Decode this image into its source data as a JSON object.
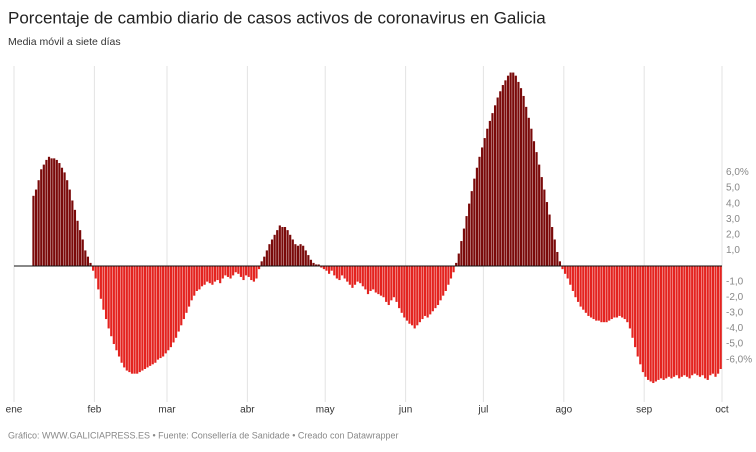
{
  "chart_data": {
    "type": "bar",
    "title": "Porcentaje de cambio diario de casos activos de coronavirus en Galicia",
    "subtitle": "Media móvil a siete días",
    "footer": "Gráfico: WWW.GALICIAPRESS.ES • Fuente: Consellería de Sanidade • Creado con Datawrapper",
    "positive_color": "#7a0a0a",
    "negative_color": "#e4231f",
    "xlim": [
      0,
      273
    ],
    "xticks": [
      {
        "value": 0,
        "label": "ene"
      },
      {
        "value": 31,
        "label": "feb"
      },
      {
        "value": 59,
        "label": "mar"
      },
      {
        "value": 90,
        "label": "abr"
      },
      {
        "value": 120,
        "label": "may"
      },
      {
        "value": 151,
        "label": "jun"
      },
      {
        "value": 181,
        "label": "jul"
      },
      {
        "value": 212,
        "label": "ago"
      },
      {
        "value": 243,
        "label": "sep"
      },
      {
        "value": 273,
        "label": "oct"
      }
    ],
    "ylim": [
      -7.69,
      12.82
    ],
    "yticks": [
      {
        "value": 6,
        "label": "6,0%"
      },
      {
        "value": 5,
        "label": "5,0"
      },
      {
        "value": 4,
        "label": "4,0"
      },
      {
        "value": 3,
        "label": "3,0"
      },
      {
        "value": 2,
        "label": "2,0"
      },
      {
        "value": 1,
        "label": "1,0"
      },
      {
        "value": -1,
        "label": "-1,0"
      },
      {
        "value": -2,
        "label": "-2,0"
      },
      {
        "value": -3,
        "label": "-3,0"
      },
      {
        "value": -4,
        "label": "-4,0"
      },
      {
        "value": -5,
        "label": "-5,0"
      },
      {
        "value": -6,
        "label": "-6,0%"
      }
    ],
    "x_grid": true,
    "values": [
      null,
      null,
      null,
      null,
      null,
      null,
      null,
      4.5,
      4.9,
      5.5,
      6.2,
      6.5,
      6.8,
      7.0,
      6.9,
      6.9,
      6.8,
      6.6,
      6.3,
      6.0,
      5.5,
      4.9,
      4.2,
      3.6,
      2.9,
      2.3,
      1.7,
      1.0,
      0.6,
      0.2,
      -0.3,
      -0.8,
      -1.5,
      -2.1,
      -2.8,
      -3.4,
      -4.0,
      -4.5,
      -5.0,
      -5.4,
      -5.8,
      -6.2,
      -6.5,
      -6.7,
      -6.8,
      -6.9,
      -6.9,
      -6.9,
      -6.8,
      -6.7,
      -6.6,
      -6.5,
      -6.4,
      -6.3,
      -6.2,
      -6.0,
      -5.9,
      -5.8,
      -5.6,
      -5.4,
      -5.2,
      -4.9,
      -4.6,
      -4.2,
      -3.8,
      -3.4,
      -3.0,
      -2.6,
      -2.2,
      -1.9,
      -1.6,
      -1.5,
      -1.3,
      -1.2,
      -1.0,
      -1.1,
      -1.2,
      -1.0,
      -0.9,
      -1.1,
      -0.8,
      -0.6,
      -0.7,
      -0.8,
      -0.6,
      -0.4,
      -0.5,
      -0.7,
      -0.9,
      -0.6,
      -0.7,
      -0.9,
      -1.0,
      -0.8,
      -0.2,
      0.3,
      0.6,
      1.0,
      1.4,
      1.7,
      2.0,
      2.3,
      2.6,
      2.5,
      2.5,
      2.3,
      2.0,
      1.7,
      1.4,
      1.3,
      1.4,
      1.3,
      1.0,
      0.7,
      0.4,
      0.2,
      0.1,
      0.1,
      -0.1,
      -0.2,
      -0.3,
      -0.5,
      -0.3,
      -0.6,
      -0.8,
      -0.9,
      -0.6,
      -0.8,
      -1.0,
      -1.2,
      -1.4,
      -1.2,
      -1.0,
      -1.1,
      -1.3,
      -1.5,
      -1.8,
      -1.6,
      -1.5,
      -1.7,
      -1.8,
      -1.9,
      -2.0,
      -2.3,
      -2.5,
      -2.2,
      -2.0,
      -2.3,
      -2.7,
      -3.0,
      -3.3,
      -3.5,
      -3.7,
      -3.8,
      -4.0,
      -3.8,
      -3.6,
      -3.4,
      -3.2,
      -3.3,
      -3.1,
      -2.9,
      -2.7,
      -2.5,
      -2.2,
      -1.9,
      -1.6,
      -1.2,
      -0.8,
      -0.4,
      0.2,
      0.8,
      1.6,
      2.4,
      3.2,
      4.0,
      4.8,
      5.6,
      6.3,
      7.0,
      7.6,
      8.2,
      8.8,
      9.3,
      9.8,
      10.3,
      10.8,
      11.2,
      11.6,
      11.9,
      12.2,
      12.4,
      12.4,
      12.2,
      11.8,
      11.4,
      10.9,
      10.2,
      9.5,
      8.8,
      8.0,
      7.3,
      6.5,
      5.7,
      4.9,
      4.1,
      3.3,
      2.5,
      1.7,
      0.9,
      0.3,
      -0.2,
      -0.5,
      -0.8,
      -1.2,
      -1.6,
      -2.0,
      -2.3,
      -2.6,
      -2.8,
      -3.0,
      -3.2,
      -3.3,
      -3.4,
      -3.5,
      -3.5,
      -3.6,
      -3.6,
      -3.6,
      -3.5,
      -3.4,
      -3.3,
      -3.3,
      -3.2,
      -3.3,
      -3.4,
      -3.6,
      -4.0,
      -4.6,
      -5.2,
      -5.8,
      -6.3,
      -6.8,
      -7.1,
      -7.3,
      -7.4,
      -7.5,
      -7.4,
      -7.3,
      -7.2,
      -7.3,
      -7.2,
      -7.1,
      -7.2,
      -7.1,
      -7.0,
      -7.2,
      -7.1,
      -7.0,
      -7.1,
      -7.2,
      -7.0,
      -6.9,
      -7.0,
      -7.1,
      -7.0,
      -7.2,
      -7.3,
      -7.0,
      -6.9,
      -7.1,
      -6.9,
      -6.6
    ]
  }
}
